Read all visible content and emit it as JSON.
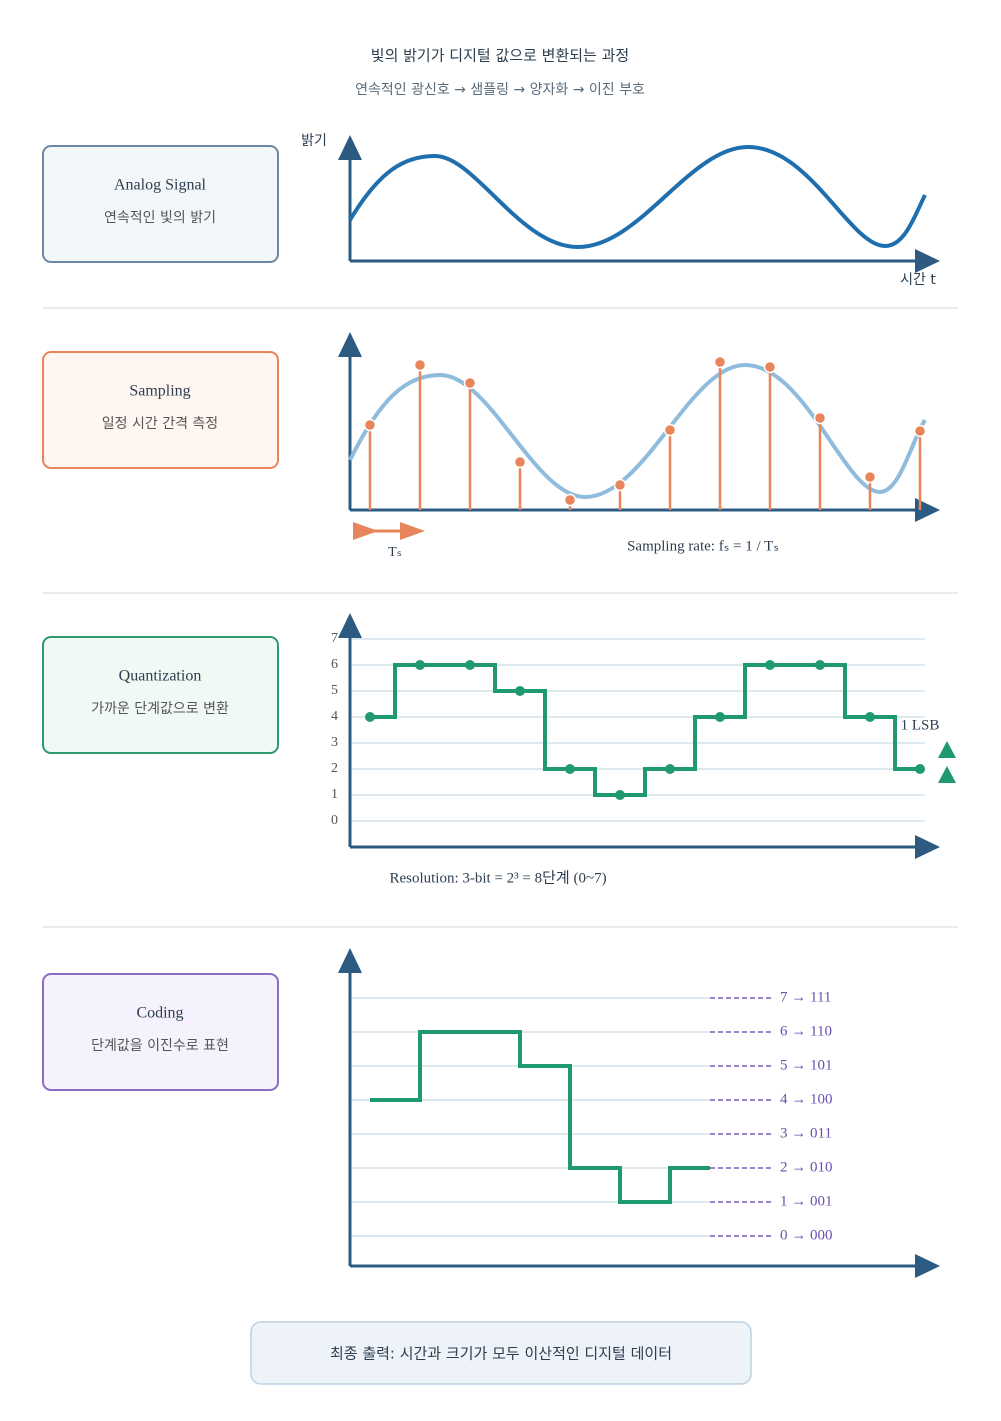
{
  "title": "빛의 밝기가 디지털 값으로 변환되는 과정",
  "subtitle": "연속적인 광신호 → 샘플링 → 양자화 → 이진 부호",
  "stages": [
    {
      "title": "Analog Signal",
      "description": "연속적인 빛의 밝기"
    },
    {
      "title": "Sampling",
      "description": "일정 시간 간격 측정"
    },
    {
      "title": "Quantization",
      "description": "가까운 단계값으로 변환"
    },
    {
      "title": "Coding",
      "description": "단계값을 이진수로 표현"
    }
  ],
  "analog": {
    "y_label": "밝기",
    "x_label": "시간 t"
  },
  "sampling": {
    "samples": [
      85,
      145,
      127,
      48,
      10,
      25,
      80,
      148,
      143,
      92,
      33,
      79
    ],
    "period_label": "Tₛ",
    "rate_label": "Sampling rate: fₛ = 1 / Tₛ"
  },
  "quantization": {
    "levels": [
      0,
      1,
      2,
      3,
      4,
      5,
      6,
      7
    ],
    "values": [
      4,
      6,
      6,
      5,
      2,
      1,
      2,
      4,
      6,
      6,
      4,
      2
    ],
    "lsb_label": "1 LSB",
    "resolution_label": "Resolution: 3-bit = 2³ = 8단계 (0~7)"
  },
  "coding": {
    "values": [
      4,
      6,
      6,
      5,
      2,
      1,
      2
    ],
    "codes": [
      "0 → 000",
      "1 → 001",
      "2 → 010",
      "3 → 011",
      "4 → 100",
      "5 → 101",
      "6 → 110",
      "7 → 111"
    ]
  },
  "output": "최종 출력: 시간과 크기가 모두 이산적인 디지털 데이터"
}
